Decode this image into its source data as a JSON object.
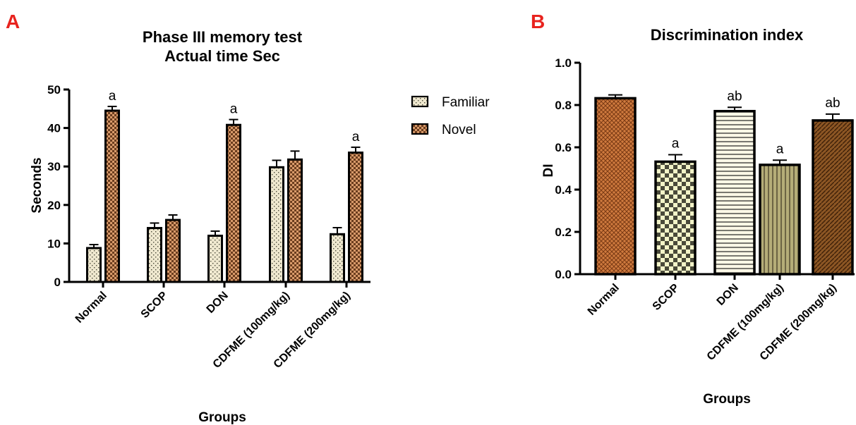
{
  "figure": {
    "panel_a_letter": "A",
    "panel_b_letter": "B"
  },
  "colors": {
    "panel_letter": "#e8231e",
    "familiar_fill": "#efe8cf",
    "novel_fill": "#d89a6a",
    "b_normal_fill": "#cf7a3e",
    "b_scop_fill": "#f3f4c8",
    "b_don_fill": "#fbf8e6",
    "b_cdfme100_fill": "#b5ad78",
    "b_cdfme200_fill": "#8c5624"
  },
  "chart_data": [
    {
      "id": "A",
      "type": "bar",
      "title_lines": [
        "Phase III memory test",
        "Actual time Sec"
      ],
      "xlabel": "Groups",
      "ylabel": "Seconds",
      "ylim": [
        0,
        50
      ],
      "yticks": [
        0,
        10,
        20,
        30,
        40,
        50
      ],
      "grid": false,
      "legend_position": "right",
      "categories": [
        "Normal",
        "SCOP",
        "DON",
        "CDFME (100mg/kg)",
        "CDFME (200mg/kg)"
      ],
      "series": [
        {
          "name": "Familiar",
          "pattern": "dots",
          "values": [
            8.8,
            14.0,
            12.0,
            29.8,
            12.4
          ],
          "errors": [
            0.9,
            1.3,
            1.2,
            1.8,
            1.7
          ],
          "annotations": [
            "",
            "",
            "",
            "",
            ""
          ]
        },
        {
          "name": "Novel",
          "pattern": "checker",
          "values": [
            44.5,
            16.1,
            40.8,
            31.8,
            33.6
          ],
          "errors": [
            1.1,
            1.3,
            1.4,
            2.2,
            1.4
          ],
          "annotations": [
            "a",
            "",
            "a",
            "",
            "a"
          ]
        }
      ]
    },
    {
      "id": "B",
      "type": "bar",
      "title": "Discrimination index",
      "xlabel": "Groups",
      "ylabel": "DI",
      "ylim": [
        0,
        1.0
      ],
      "yticks": [
        "0.0",
        "0.2",
        "0.4",
        "0.6",
        "0.8",
        "1.0"
      ],
      "grid": false,
      "categories": [
        "Normal",
        "SCOP",
        "DON",
        "CDFME (100mg/kg)",
        "CDFME (200mg/kg)"
      ],
      "values": [
        0.832,
        0.532,
        0.771,
        0.517,
        0.727
      ],
      "errors": [
        0.016,
        0.033,
        0.018,
        0.022,
        0.03
      ],
      "annotations": [
        "",
        "a",
        "ab",
        "a",
        "ab"
      ],
      "patterns": [
        "crosshatch",
        "checker",
        "hlines",
        "vlines",
        "diag"
      ]
    }
  ]
}
